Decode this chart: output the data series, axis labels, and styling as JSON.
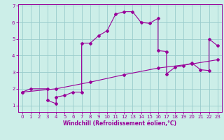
{
  "xlabel": "Windchill (Refroidissement éolien,°C)",
  "background_color": "#cceee8",
  "line_color": "#990099",
  "grid_color": "#99cccc",
  "xlim": [
    -0.5,
    23.5
  ],
  "ylim": [
    0.6,
    7.1
  ],
  "xticks": [
    0,
    1,
    2,
    3,
    4,
    5,
    6,
    7,
    8,
    9,
    10,
    11,
    12,
    13,
    14,
    15,
    16,
    17,
    18,
    19,
    20,
    21,
    22,
    23
  ],
  "yticks": [
    1,
    2,
    3,
    4,
    5,
    6,
    7
  ],
  "series1_x": [
    0,
    1,
    3,
    3,
    4,
    4,
    5,
    6,
    7,
    7,
    8,
    9,
    10,
    11,
    12,
    13,
    14,
    15,
    16,
    16,
    17,
    17,
    18,
    19,
    20,
    21,
    22,
    22,
    23
  ],
  "series1_y": [
    1.8,
    2.0,
    2.0,
    1.3,
    1.1,
    1.5,
    1.6,
    1.8,
    1.8,
    4.75,
    4.75,
    5.2,
    5.5,
    6.5,
    6.65,
    6.65,
    6.0,
    5.95,
    6.25,
    4.3,
    4.25,
    2.9,
    3.3,
    3.4,
    3.55,
    3.15,
    3.1,
    5.0,
    4.6
  ],
  "series2_x": [
    0,
    4,
    8,
    12,
    16,
    20,
    23
  ],
  "series2_y": [
    1.8,
    2.0,
    2.4,
    2.85,
    3.25,
    3.5,
    3.75
  ],
  "marker_size": 2.0,
  "line_width": 0.8,
  "tick_fontsize": 5.0,
  "xlabel_fontsize": 5.5
}
